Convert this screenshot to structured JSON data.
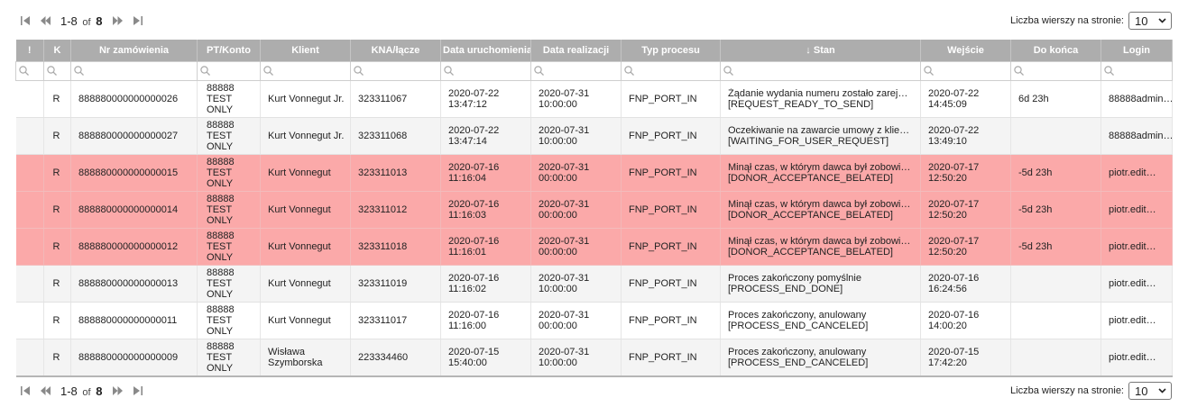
{
  "pagination": {
    "range": "1-8",
    "of_label": "of",
    "total": "8",
    "rows_per_page_label": "Liczba wierszy na stronie:",
    "rows_per_page_value": "10"
  },
  "columns": [
    "!",
    "K",
    "Nr zamówienia",
    "PT/Konto",
    "Klient",
    "KNA/łącze",
    "Data uruchomienia",
    "Data realizacji",
    "Typ procesu",
    "↓ Stan",
    "Wejście",
    "Do końca",
    "Login"
  ],
  "rows": [
    {
      "flag": "",
      "k": "R",
      "order": "888880000000000026",
      "pt": "88888 TEST ONLY",
      "client": "Kurt Vonnegut Jr.",
      "kna": "323311067",
      "start_date": "2020-07-22",
      "start_time": "13:47:12",
      "real_date": "2020-07-31",
      "real_time": "10:00:00",
      "type": "FNP_PORT_IN",
      "state_line1": "Żądanie wydania numeru zostało zarej…",
      "state_line2": "[REQUEST_READY_TO_SEND]",
      "in_date": "2020-07-22",
      "in_time": "14:45:09",
      "remaining": "6d 23h",
      "login": "88888admin…",
      "late": false
    },
    {
      "flag": "",
      "k": "R",
      "order": "888880000000000027",
      "pt": "88888 TEST ONLY",
      "client": "Kurt Vonnegut Jr.",
      "kna": "323311068",
      "start_date": "2020-07-22",
      "start_time": "13:47:14",
      "real_date": "2020-07-31",
      "real_time": "10:00:00",
      "type": "FNP_PORT_IN",
      "state_line1": "Oczekiwanie na zawarcie umowy z klie…",
      "state_line2": "[WAITING_FOR_USER_REQUEST]",
      "in_date": "2020-07-22",
      "in_time": "13:49:10",
      "remaining": "",
      "login": "88888admin…",
      "late": false
    },
    {
      "flag": "",
      "k": "R",
      "order": "888880000000000015",
      "pt": "88888 TEST ONLY",
      "client": "Kurt Vonnegut",
      "kna": "323311013",
      "start_date": "2020-07-16",
      "start_time": "11:16:04",
      "real_date": "2020-07-31",
      "real_time": "00:00:00",
      "type": "FNP_PORT_IN",
      "state_line1": "Minął czas, w którym dawca był zobowi…",
      "state_line2": "[DONOR_ACCEPTANCE_BELATED]",
      "in_date": "2020-07-17",
      "in_time": "12:50:20",
      "remaining": "-5d 23h",
      "login": "piotr.edit…",
      "late": true
    },
    {
      "flag": "",
      "k": "R",
      "order": "888880000000000014",
      "pt": "88888 TEST ONLY",
      "client": "Kurt Vonnegut",
      "kna": "323311012",
      "start_date": "2020-07-16",
      "start_time": "11:16:03",
      "real_date": "2020-07-31",
      "real_time": "00:00:00",
      "type": "FNP_PORT_IN",
      "state_line1": "Minął czas, w którym dawca był zobowi…",
      "state_line2": "[DONOR_ACCEPTANCE_BELATED]",
      "in_date": "2020-07-17",
      "in_time": "12:50:20",
      "remaining": "-5d 23h",
      "login": "piotr.edit…",
      "late": true
    },
    {
      "flag": "",
      "k": "R",
      "order": "888880000000000012",
      "pt": "88888 TEST ONLY",
      "client": "Kurt Vonnegut",
      "kna": "323311018",
      "start_date": "2020-07-16",
      "start_time": "11:16:01",
      "real_date": "2020-07-31",
      "real_time": "00:00:00",
      "type": "FNP_PORT_IN",
      "state_line1": "Minął czas, w którym dawca był zobowi…",
      "state_line2": "[DONOR_ACCEPTANCE_BELATED]",
      "in_date": "2020-07-17",
      "in_time": "12:50:20",
      "remaining": "-5d 23h",
      "login": "piotr.edit…",
      "late": true
    },
    {
      "flag": "",
      "k": "R",
      "order": "888880000000000013",
      "pt": "88888 TEST ONLY",
      "client": "Kurt Vonnegut",
      "kna": "323311019",
      "start_date": "2020-07-16",
      "start_time": "11:16:02",
      "real_date": "2020-07-31",
      "real_time": "10:00:00",
      "type": "FNP_PORT_IN",
      "state_line1": "Proces zakończony pomyślnie",
      "state_line2": "[PROCESS_END_DONE]",
      "in_date": "2020-07-16",
      "in_time": "16:24:56",
      "remaining": "",
      "login": "piotr.edit…",
      "late": false
    },
    {
      "flag": "",
      "k": "R",
      "order": "888880000000000011",
      "pt": "88888 TEST ONLY",
      "client": "Kurt Vonnegut",
      "kna": "323311017",
      "start_date": "2020-07-16",
      "start_time": "11:16:00",
      "real_date": "2020-07-31",
      "real_time": "00:00:00",
      "type": "FNP_PORT_IN",
      "state_line1": "Proces zakończony, anulowany",
      "state_line2": "[PROCESS_END_CANCELED]",
      "in_date": "2020-07-16",
      "in_time": "14:00:20",
      "remaining": "",
      "login": "piotr.edit…",
      "late": false
    },
    {
      "flag": "",
      "k": "R",
      "order": "888880000000000009",
      "pt": "88888 TEST ONLY",
      "client": "Wisława Szymborska",
      "kna": "223334460",
      "start_date": "2020-07-15",
      "start_time": "15:40:00",
      "real_date": "2020-07-31",
      "real_time": "10:00:00",
      "type": "FNP_PORT_IN",
      "state_line1": "Proces zakończony, anulowany",
      "state_line2": "[PROCESS_END_CANCELED]",
      "in_date": "2020-07-15",
      "in_time": "17:42:20",
      "remaining": "",
      "login": "piotr.edit…",
      "late": false
    }
  ],
  "colors": {
    "header_bg": "#adadad",
    "late_row_bg": "#fba9a9",
    "alt_row_bg": "#f4f4f4"
  },
  "icons": {
    "first_page": "first-page-icon",
    "prev_page": "previous-page-icon",
    "next_page": "next-page-icon",
    "last_page": "last-page-icon",
    "filter": "search-icon"
  }
}
